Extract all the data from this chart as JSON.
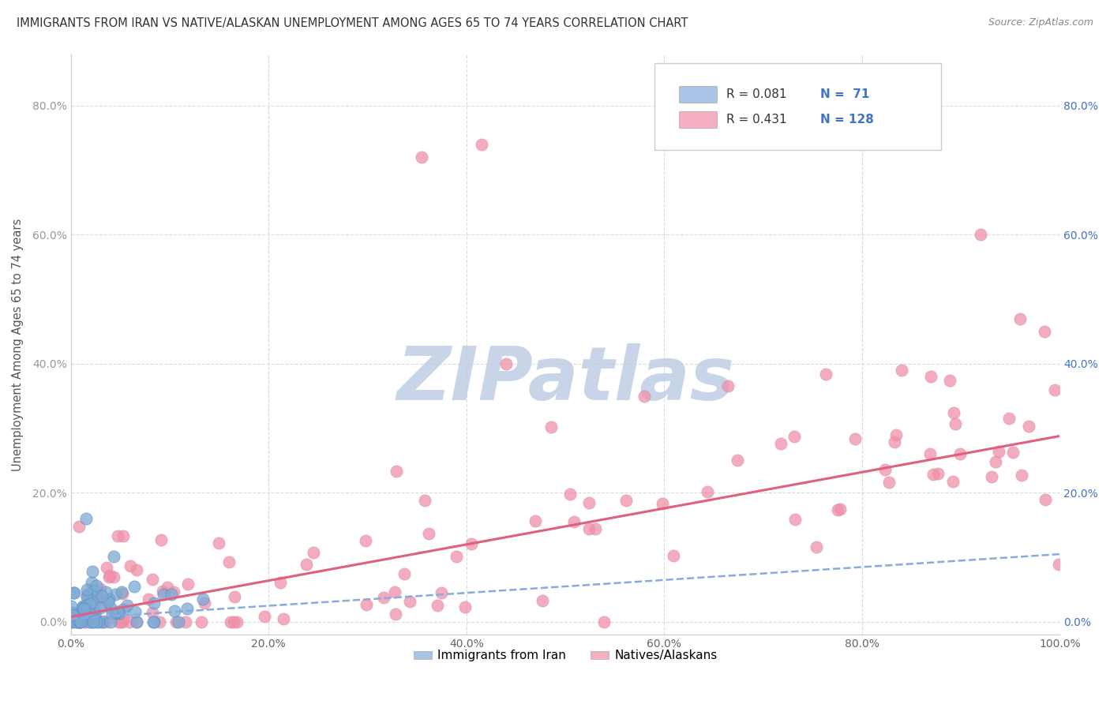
{
  "title": "IMMIGRANTS FROM IRAN VS NATIVE/ALASKAN UNEMPLOYMENT AMONG AGES 65 TO 74 YEARS CORRELATION CHART",
  "source": "Source: ZipAtlas.com",
  "ylabel": "Unemployment Among Ages 65 to 74 years",
  "xlim": [
    0.0,
    1.0
  ],
  "ylim": [
    -0.02,
    0.88
  ],
  "yticks": [
    0.0,
    0.2,
    0.4,
    0.6,
    0.8
  ],
  "ytick_labels": [
    "0.0%",
    "20.0%",
    "40.0%",
    "60.0%",
    "80.0%"
  ],
  "xtick_labels": [
    "0.0%",
    "20.0%",
    "40.0%",
    "60.0%",
    "80.0%",
    "100.0%"
  ],
  "xticks": [
    0.0,
    0.2,
    0.4,
    0.6,
    0.8,
    1.0
  ],
  "legend_entries": [
    {
      "label": "Immigrants from Iran",
      "color": "#aac4e8",
      "marker_color": "#7baad4",
      "R": 0.081,
      "N": 71
    },
    {
      "label": "Natives/Alaskans",
      "color": "#f4b0c0",
      "marker_color": "#f090a8",
      "R": 0.431,
      "N": 128
    }
  ],
  "line_iran_color": "#88aadd",
  "line_iran_style": "--",
  "line_iran_slope": 0.1,
  "line_iran_intercept": 0.005,
  "line_native_color": "#e06080",
  "line_native_style": "-",
  "line_native_slope": 0.28,
  "line_native_intercept": 0.008,
  "watermark": "ZIPatlas",
  "watermark_color": "#c8d4e8",
  "background_color": "#ffffff",
  "grid_color": "#cccccc",
  "grid_style": "--"
}
